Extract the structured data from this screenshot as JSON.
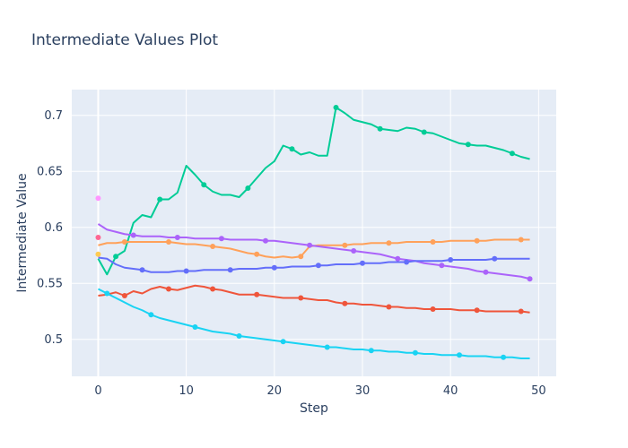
{
  "chart_data": {
    "type": "line",
    "title": "Intermediate Values Plot",
    "xlabel": "Step",
    "ylabel": "Intermediate Value",
    "xlim": [
      -3,
      52
    ],
    "ylim": [
      0.467,
      0.723
    ],
    "xticks": [
      0,
      10,
      20,
      30,
      40,
      50
    ],
    "yticks": [
      0.5,
      0.55,
      0.6,
      0.65,
      0.7
    ],
    "ytick_labels": [
      "0.5",
      "0.55",
      "0.6",
      "0.65",
      "0.7"
    ],
    "grid": true,
    "plot_bg": "#e5ecf6",
    "legend": "none",
    "series": [
      {
        "color": "#00cc96",
        "x": [
          0,
          1,
          2,
          3,
          4,
          5,
          6,
          7,
          8,
          9,
          10,
          11,
          12,
          13,
          14,
          15,
          16,
          17,
          18,
          19,
          20,
          21,
          22,
          23,
          24,
          25,
          26,
          27,
          28,
          29,
          30,
          31,
          32,
          33,
          34,
          35,
          36,
          37,
          38,
          39,
          40,
          41,
          42,
          43,
          44,
          45,
          46,
          47,
          48,
          49
        ],
        "y": [
          0.572,
          0.558,
          0.574,
          0.579,
          0.604,
          0.611,
          0.609,
          0.625,
          0.625,
          0.631,
          0.655,
          0.647,
          0.638,
          0.632,
          0.629,
          0.629,
          0.627,
          0.635,
          0.644,
          0.653,
          0.659,
          0.673,
          0.67,
          0.665,
          0.667,
          0.664,
          0.664,
          0.707,
          0.702,
          0.696,
          0.694,
          0.692,
          0.688,
          0.687,
          0.686,
          0.689,
          0.688,
          0.685,
          0.684,
          0.681,
          0.678,
          0.675,
          0.674,
          0.673,
          0.673,
          0.671,
          0.669,
          0.666,
          0.663,
          0.661
        ],
        "markers": [
          2,
          7,
          12,
          17,
          22,
          27,
          32,
          37,
          42,
          47
        ]
      },
      {
        "color": "#fecb52",
        "x": [
          0
        ],
        "y": [
          0.576
        ],
        "markers": [
          0
        ]
      },
      {
        "color": "#ffa15a",
        "x": [
          0,
          1,
          2,
          3,
          4,
          5,
          6,
          7,
          8,
          9,
          10,
          11,
          12,
          13,
          14,
          15,
          16,
          17,
          18,
          19,
          20,
          21,
          22,
          23,
          24,
          25,
          26,
          27,
          28,
          29,
          30,
          31,
          32,
          33,
          34,
          35,
          36,
          37,
          38,
          39,
          40,
          41,
          42,
          43,
          44,
          45,
          46,
          47,
          48,
          49
        ],
        "y": [
          0.584,
          0.586,
          0.586,
          0.587,
          0.587,
          0.587,
          0.587,
          0.587,
          0.587,
          0.586,
          0.585,
          0.585,
          0.584,
          0.583,
          0.582,
          0.581,
          0.579,
          0.577,
          0.576,
          0.574,
          0.573,
          0.574,
          0.573,
          0.574,
          0.583,
          0.584,
          0.584,
          0.584,
          0.584,
          0.585,
          0.585,
          0.586,
          0.586,
          0.586,
          0.586,
          0.587,
          0.587,
          0.587,
          0.587,
          0.587,
          0.588,
          0.588,
          0.588,
          0.588,
          0.588,
          0.589,
          0.589,
          0.589,
          0.589,
          0.589
        ],
        "markers": [
          3,
          8,
          13,
          18,
          23,
          28,
          33,
          38,
          43,
          48
        ]
      },
      {
        "color": "#ab63fa",
        "x": [
          0,
          1,
          2,
          3,
          4,
          5,
          6,
          7,
          8,
          9,
          10,
          11,
          12,
          13,
          14,
          15,
          16,
          17,
          18,
          19,
          20,
          21,
          22,
          23,
          24,
          25,
          26,
          27,
          28,
          29,
          30,
          31,
          32,
          33,
          34,
          35,
          36,
          37,
          38,
          39,
          40,
          41,
          42,
          43,
          44,
          45,
          46,
          47,
          48,
          49
        ],
        "y": [
          0.603,
          0.598,
          0.596,
          0.594,
          0.593,
          0.592,
          0.592,
          0.592,
          0.591,
          0.591,
          0.591,
          0.59,
          0.59,
          0.59,
          0.59,
          0.589,
          0.589,
          0.589,
          0.589,
          0.588,
          0.588,
          0.587,
          0.586,
          0.585,
          0.584,
          0.583,
          0.582,
          0.581,
          0.58,
          0.579,
          0.578,
          0.577,
          0.576,
          0.574,
          0.572,
          0.571,
          0.57,
          0.568,
          0.567,
          0.566,
          0.565,
          0.564,
          0.563,
          0.561,
          0.56,
          0.559,
          0.558,
          0.557,
          0.556,
          0.554
        ],
        "markers": [
          4,
          9,
          14,
          19,
          24,
          29,
          34,
          39,
          44,
          49
        ]
      },
      {
        "color": "#636efa",
        "x": [
          0,
          1,
          2,
          3,
          4,
          5,
          6,
          7,
          8,
          9,
          10,
          11,
          12,
          13,
          14,
          15,
          16,
          17,
          18,
          19,
          20,
          21,
          22,
          23,
          24,
          25,
          26,
          27,
          28,
          29,
          30,
          31,
          32,
          33,
          34,
          35,
          36,
          37,
          38,
          39,
          40,
          41,
          42,
          43,
          44,
          45,
          46,
          47,
          48,
          49
        ],
        "y": [
          0.573,
          0.572,
          0.567,
          0.564,
          0.563,
          0.562,
          0.56,
          0.56,
          0.56,
          0.561,
          0.561,
          0.561,
          0.562,
          0.562,
          0.562,
          0.562,
          0.563,
          0.563,
          0.563,
          0.564,
          0.564,
          0.564,
          0.565,
          0.565,
          0.565,
          0.566,
          0.566,
          0.567,
          0.567,
          0.567,
          0.568,
          0.568,
          0.568,
          0.569,
          0.569,
          0.569,
          0.57,
          0.57,
          0.57,
          0.57,
          0.571,
          0.571,
          0.571,
          0.571,
          0.571,
          0.572,
          0.572,
          0.572,
          0.572,
          0.572
        ],
        "markers": [
          5,
          10,
          15,
          20,
          25,
          30,
          35,
          40,
          45
        ]
      },
      {
        "color": "#ef553b",
        "x": [
          0,
          1,
          2,
          3,
          4,
          5,
          6,
          7,
          8,
          9,
          10,
          11,
          12,
          13,
          14,
          15,
          16,
          17,
          18,
          19,
          20,
          21,
          22,
          23,
          24,
          25,
          26,
          27,
          28,
          29,
          30,
          31,
          32,
          33,
          34,
          35,
          36,
          37,
          38,
          39,
          40,
          41,
          42,
          43,
          44,
          45,
          46,
          47,
          48,
          49
        ],
        "y": [
          0.539,
          0.54,
          0.542,
          0.539,
          0.543,
          0.541,
          0.545,
          0.547,
          0.545,
          0.544,
          0.546,
          0.548,
          0.547,
          0.545,
          0.544,
          0.542,
          0.54,
          0.54,
          0.54,
          0.539,
          0.538,
          0.537,
          0.537,
          0.537,
          0.536,
          0.535,
          0.535,
          0.533,
          0.532,
          0.532,
          0.531,
          0.531,
          0.53,
          0.529,
          0.529,
          0.528,
          0.528,
          0.527,
          0.527,
          0.527,
          0.527,
          0.526,
          0.526,
          0.526,
          0.525,
          0.525,
          0.525,
          0.525,
          0.525,
          0.524
        ],
        "markers": [
          3,
          8,
          13,
          18,
          23,
          28,
          33,
          38,
          43,
          48
        ]
      },
      {
        "color": "#19d3f3",
        "x": [
          0,
          1,
          2,
          3,
          4,
          5,
          6,
          7,
          8,
          9,
          10,
          11,
          12,
          13,
          14,
          15,
          16,
          17,
          18,
          19,
          20,
          21,
          22,
          23,
          24,
          25,
          26,
          27,
          28,
          29,
          30,
          31,
          32,
          33,
          34,
          35,
          36,
          37,
          38,
          39,
          40,
          41,
          42,
          43,
          44,
          45,
          46,
          47,
          48,
          49
        ],
        "y": [
          0.545,
          0.541,
          0.537,
          0.533,
          0.529,
          0.526,
          0.522,
          0.519,
          0.517,
          0.515,
          0.513,
          0.511,
          0.509,
          0.507,
          0.506,
          0.505,
          0.503,
          0.502,
          0.501,
          0.5,
          0.499,
          0.498,
          0.497,
          0.496,
          0.495,
          0.494,
          0.493,
          0.493,
          0.492,
          0.491,
          0.491,
          0.49,
          0.49,
          0.489,
          0.489,
          0.488,
          0.488,
          0.487,
          0.487,
          0.486,
          0.486,
          0.486,
          0.485,
          0.485,
          0.485,
          0.484,
          0.484,
          0.484,
          0.483,
          0.483
        ],
        "markers": [
          1,
          6,
          11,
          16,
          21,
          26,
          31,
          36,
          41,
          46
        ]
      },
      {
        "color": "#ff6692",
        "x": [
          0
        ],
        "y": [
          0.591
        ],
        "markers": [
          0
        ]
      },
      {
        "color": "#ff97ff",
        "x": [
          0
        ],
        "y": [
          0.626
        ],
        "markers": [
          0
        ]
      }
    ]
  }
}
